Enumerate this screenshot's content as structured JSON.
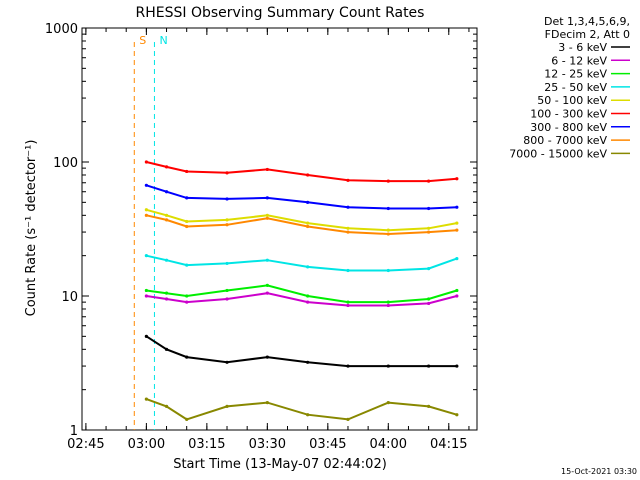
{
  "chart_data": {
    "type": "line",
    "title": "RHESSI Observing Summary Count Rates",
    "xlabel": "Start Time (13-May-07 02:44:02)",
    "ylabel": "Count Rate (s⁻¹ detector⁻¹)",
    "y_scale": "log",
    "ylim": [
      1,
      1000
    ],
    "xlim": [
      "02:44:02",
      "04:22"
    ],
    "x_ticks": [
      "02:45",
      "03:00",
      "03:15",
      "03:30",
      "03:45",
      "04:00",
      "04:15"
    ],
    "y_ticks": [
      "1",
      "10",
      "100",
      "1000"
    ],
    "legend_header": [
      "Det 1,3,4,5,6,9,",
      "FDecim 2, Att 0"
    ],
    "legend_placement": "right",
    "series": [
      {
        "name": "3 - 6 keV",
        "color": "#000000",
        "x": [
          "03:00",
          "03:05",
          "03:10",
          "03:20",
          "03:30",
          "03:40",
          "03:50",
          "04:00",
          "04:10",
          "04:17"
        ],
        "values": [
          5,
          4,
          3.5,
          3.2,
          3.5,
          3.2,
          3,
          3,
          3,
          3
        ]
      },
      {
        "name": "6 - 12 keV",
        "color": "#cc00cc",
        "x": [
          "03:00",
          "03:05",
          "03:10",
          "03:20",
          "03:30",
          "03:40",
          "03:50",
          "04:00",
          "04:10",
          "04:17"
        ],
        "values": [
          10,
          9.5,
          9,
          9.5,
          10.5,
          9,
          8.5,
          8.5,
          8.8,
          10
        ]
      },
      {
        "name": "12 - 25 keV",
        "color": "#00ee00",
        "x": [
          "03:00",
          "03:05",
          "03:10",
          "03:20",
          "03:30",
          "03:40",
          "03:50",
          "04:00",
          "04:10",
          "04:17"
        ],
        "values": [
          11,
          10.5,
          10,
          11,
          12,
          10,
          9,
          9,
          9.5,
          11
        ]
      },
      {
        "name": "25 - 50 keV",
        "color": "#00e5e5",
        "x": [
          "03:00",
          "03:05",
          "03:10",
          "03:20",
          "03:30",
          "03:40",
          "03:50",
          "04:00",
          "04:10",
          "04:17"
        ],
        "values": [
          20,
          18.5,
          17,
          17.5,
          18.5,
          16.5,
          15.5,
          15.5,
          16,
          19
        ]
      },
      {
        "name": "50 - 100 keV",
        "color": "#dddd00",
        "x": [
          "03:00",
          "03:05",
          "03:10",
          "03:20",
          "03:30",
          "03:40",
          "03:50",
          "04:00",
          "04:10",
          "04:17"
        ],
        "values": [
          44,
          40,
          36,
          37,
          40,
          35,
          32,
          31,
          32,
          35
        ]
      },
      {
        "name": "100 - 300 keV",
        "color": "#ff0000",
        "x": [
          "03:00",
          "03:05",
          "03:10",
          "03:20",
          "03:30",
          "03:40",
          "03:50",
          "04:00",
          "04:10",
          "04:17"
        ],
        "values": [
          100,
          92,
          85,
          83,
          88,
          80,
          73,
          72,
          72,
          75
        ]
      },
      {
        "name": "300 - 800 keV",
        "color": "#0000ff",
        "x": [
          "03:00",
          "03:05",
          "03:10",
          "03:20",
          "03:30",
          "03:40",
          "03:50",
          "04:00",
          "04:10",
          "04:17"
        ],
        "values": [
          67,
          60,
          54,
          53,
          54,
          50,
          46,
          45,
          45,
          46
        ]
      },
      {
        "name": "800 - 7000 keV",
        "color": "#ff8800",
        "x": [
          "03:00",
          "03:05",
          "03:10",
          "03:20",
          "03:30",
          "03:40",
          "03:50",
          "04:00",
          "04:10",
          "04:17"
        ],
        "values": [
          40,
          37,
          33,
          34,
          38,
          33,
          30,
          29,
          30,
          31
        ]
      },
      {
        "name": "7000 - 15000 keV",
        "color": "#888800",
        "x": [
          "03:00",
          "03:05",
          "03:10",
          "03:20",
          "03:30",
          "03:40",
          "03:50",
          "04:00",
          "04:10",
          "04:17"
        ],
        "values": [
          1.7,
          1.5,
          1.2,
          1.5,
          1.6,
          1.3,
          1.2,
          1.6,
          1.5,
          1.3
        ]
      }
    ],
    "annotations": [
      {
        "label": "S",
        "color": "#ff8800",
        "time": "02:57",
        "style": "dashed"
      },
      {
        "label": "N",
        "color": "#00e5e5",
        "time": "03:02",
        "style": "dashed"
      }
    ],
    "grid": false
  },
  "footer": {
    "timestamp": "15-Oct-2021 03:30"
  }
}
